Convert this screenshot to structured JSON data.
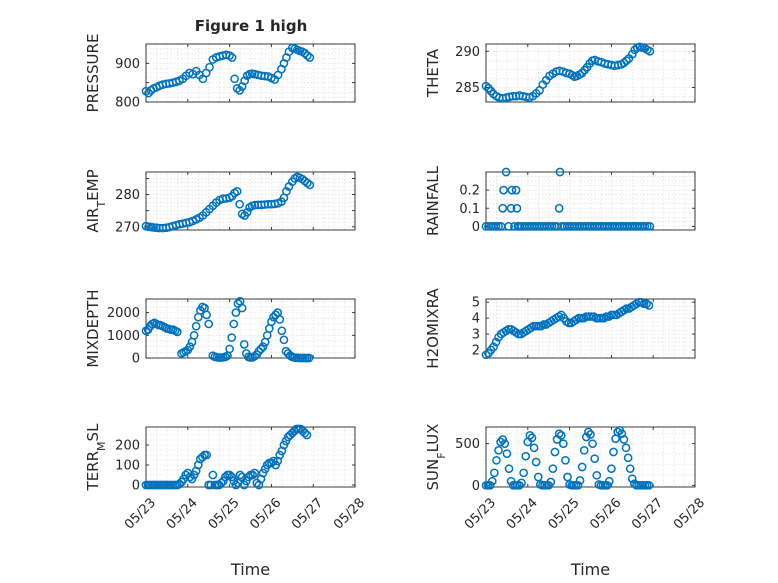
{
  "figure_title": "Figure 1 high",
  "colors": {
    "marker": "#0072BD",
    "axis": "#262626",
    "grid": "#d9d9d9"
  },
  "chart_data": [
    {
      "type": "scatter",
      "ylabel": "PRESSURE",
      "title": "Figure 1 high",
      "ylim": [
        800,
        950
      ],
      "yticks": [
        800,
        850,
        900
      ],
      "yticklabels": [
        "800",
        "",
        "900"
      ],
      "xlim": [
        0,
        5
      ],
      "xticks": [
        0,
        1,
        2,
        3,
        4,
        5
      ],
      "xticklabels": [],
      "grid": true,
      "x": [
        0.0,
        0.06,
        0.12,
        0.18,
        0.25,
        0.32,
        0.4,
        0.48,
        0.56,
        0.64,
        0.72,
        0.8,
        0.88,
        0.96,
        1.04,
        1.12,
        1.2,
        1.28,
        1.36,
        1.44,
        1.52,
        1.6,
        1.68,
        1.76,
        1.84,
        1.92,
        2.0,
        2.06,
        2.12,
        2.18,
        2.24,
        2.3,
        2.36,
        2.42,
        2.48,
        2.54,
        2.6,
        2.68,
        2.76,
        2.84,
        2.92,
        3.0,
        3.08,
        3.16,
        3.24,
        3.3,
        3.36,
        3.42,
        3.5,
        3.56,
        3.62,
        3.68,
        3.74,
        3.8,
        3.86,
        3.92
      ],
      "y": [
        828,
        823,
        830,
        835,
        838,
        842,
        845,
        847,
        848,
        850,
        852,
        855,
        860,
        868,
        875,
        872,
        880,
        870,
        860,
        875,
        890,
        910,
        915,
        918,
        920,
        922,
        920,
        915,
        860,
        835,
        830,
        840,
        855,
        868,
        872,
        873,
        872,
        870,
        868,
        867,
        866,
        862,
        858,
        870,
        885,
        900,
        915,
        930,
        940,
        938,
        935,
        932,
        930,
        926,
        920,
        915
      ]
    },
    {
      "type": "scatter",
      "ylabel": "THETA",
      "ylim": [
        283,
        291
      ],
      "yticks": [
        285,
        290
      ],
      "yticklabels": [
        "285",
        "290"
      ],
      "xlim": [
        0,
        5
      ],
      "xticks": [
        0,
        1,
        2,
        3,
        4,
        5
      ],
      "xticklabels": [],
      "grid": true,
      "x": [
        0.0,
        0.06,
        0.12,
        0.18,
        0.25,
        0.32,
        0.4,
        0.48,
        0.56,
        0.64,
        0.72,
        0.8,
        0.88,
        0.96,
        1.04,
        1.12,
        1.2,
        1.28,
        1.36,
        1.44,
        1.52,
        1.6,
        1.68,
        1.76,
        1.84,
        1.92,
        2.0,
        2.06,
        2.12,
        2.18,
        2.24,
        2.3,
        2.36,
        2.42,
        2.48,
        2.54,
        2.6,
        2.68,
        2.76,
        2.84,
        2.92,
        3.0,
        3.08,
        3.16,
        3.24,
        3.3,
        3.36,
        3.42,
        3.5,
        3.56,
        3.62,
        3.68,
        3.74,
        3.8,
        3.86,
        3.92
      ],
      "y": [
        285.2,
        284.9,
        284.5,
        284.1,
        283.8,
        283.6,
        283.5,
        283.6,
        283.7,
        283.8,
        283.8,
        283.9,
        283.8,
        283.7,
        283.6,
        283.8,
        284.2,
        284.6,
        285.4,
        286.0,
        286.6,
        286.9,
        287.2,
        287.3,
        287.2,
        287.0,
        286.9,
        286.7,
        286.5,
        286.6,
        286.8,
        287.0,
        287.4,
        287.8,
        288.3,
        288.7,
        288.8,
        288.6,
        288.5,
        288.3,
        288.2,
        288.1,
        288.0,
        288.1,
        288.2,
        288.4,
        288.7,
        289.0,
        289.6,
        290.2,
        290.5,
        290.6,
        290.5,
        290.4,
        290.2,
        290.0
      ]
    },
    {
      "type": "scatter",
      "ylabel": "AIR_TEMP",
      "ylim": [
        269,
        287
      ],
      "yticks": [
        270,
        275,
        280,
        285
      ],
      "yticklabels": [
        "270",
        "",
        "280",
        ""
      ],
      "xlim": [
        0,
        5
      ],
      "xticks": [
        0,
        1,
        2,
        3,
        4,
        5
      ],
      "xticklabels": [],
      "grid": true,
      "x": [
        0.0,
        0.06,
        0.12,
        0.18,
        0.25,
        0.32,
        0.4,
        0.48,
        0.56,
        0.64,
        0.72,
        0.8,
        0.88,
        0.96,
        1.04,
        1.12,
        1.2,
        1.28,
        1.36,
        1.44,
        1.52,
        1.6,
        1.68,
        1.76,
        1.84,
        1.92,
        2.0,
        2.06,
        2.12,
        2.18,
        2.24,
        2.3,
        2.36,
        2.42,
        2.48,
        2.54,
        2.6,
        2.68,
        2.76,
        2.84,
        2.92,
        3.0,
        3.08,
        3.16,
        3.24,
        3.3,
        3.36,
        3.42,
        3.5,
        3.56,
        3.62,
        3.68,
        3.74,
        3.8,
        3.86,
        3.92
      ],
      "y": [
        270.2,
        270.0,
        269.9,
        269.8,
        269.7,
        269.6,
        269.6,
        269.7,
        269.9,
        270.2,
        270.5,
        270.8,
        271.0,
        271.2,
        271.4,
        271.8,
        272.3,
        272.8,
        273.5,
        274.5,
        275.5,
        276.5,
        277.5,
        278.3,
        278.7,
        278.8,
        279.0,
        279.5,
        280.5,
        281.0,
        277.0,
        274.0,
        273.5,
        274.5,
        276.0,
        276.5,
        276.7,
        276.8,
        276.8,
        276.9,
        277.0,
        277.0,
        277.1,
        277.3,
        277.8,
        279.0,
        281.0,
        282.5,
        284.0,
        285.0,
        285.5,
        285.2,
        284.8,
        284.2,
        283.6,
        283.0
      ]
    },
    {
      "type": "scatter",
      "ylabel": "RAINFALL",
      "ylim": [
        -0.02,
        0.3
      ],
      "yticks": [
        0,
        0.1,
        0.2
      ],
      "yticklabels": [
        "0",
        "0.1",
        "0.2"
      ],
      "xlim": [
        0,
        5
      ],
      "xticks": [
        0,
        1,
        2,
        3,
        4,
        5
      ],
      "xticklabels": [],
      "grid": true,
      "x": [
        0.0,
        0.06,
        0.12,
        0.18,
        0.24,
        0.3,
        0.36,
        0.4,
        0.42,
        0.48,
        0.54,
        0.6,
        0.62,
        0.68,
        0.72,
        0.74,
        0.76,
        0.8,
        0.86,
        0.92,
        0.98,
        1.04,
        1.1,
        1.16,
        1.22,
        1.28,
        1.34,
        1.4,
        1.46,
        1.52,
        1.58,
        1.64,
        1.7,
        1.75,
        1.77,
        1.82,
        1.88,
        1.94,
        2.0,
        2.06,
        2.12,
        2.18,
        2.24,
        2.3,
        2.36,
        2.42,
        2.48,
        2.54,
        2.6,
        2.66,
        2.72,
        2.78,
        2.84,
        2.9,
        2.96,
        3.02,
        3.08,
        3.14,
        3.2,
        3.26,
        3.32,
        3.38,
        3.44,
        3.5,
        3.56,
        3.62,
        3.68,
        3.74,
        3.8,
        3.86,
        3.92
      ],
      "y": [
        0,
        0,
        0,
        0,
        0,
        0,
        0,
        0.1,
        0.2,
        0.3,
        0,
        0.1,
        0.2,
        0,
        0.2,
        0.1,
        0,
        0,
        0,
        0,
        0,
        0,
        0,
        0,
        0,
        0,
        0,
        0,
        0,
        0,
        0,
        0,
        0,
        0.1,
        0.3,
        0,
        0,
        0,
        0,
        0,
        0,
        0,
        0,
        0,
        0,
        0,
        0,
        0,
        0,
        0,
        0,
        0,
        0,
        0,
        0,
        0,
        0,
        0,
        0,
        0,
        0,
        0,
        0,
        0,
        0,
        0,
        0,
        0,
        0,
        0,
        0
      ]
    },
    {
      "type": "scatter",
      "ylabel": "MIXDEPTH",
      "ylim": [
        0,
        2600
      ],
      "yticks": [
        0,
        1000,
        2000
      ],
      "yticklabels": [
        "0",
        "1000",
        "2000"
      ],
      "xlim": [
        0,
        5
      ],
      "xticks": [
        0,
        1,
        2,
        3,
        4,
        5
      ],
      "xticklabels": [],
      "grid": true,
      "x": [
        0.0,
        0.05,
        0.1,
        0.15,
        0.2,
        0.25,
        0.3,
        0.35,
        0.4,
        0.45,
        0.5,
        0.55,
        0.6,
        0.65,
        0.7,
        0.75,
        0.85,
        0.9,
        0.95,
        1.0,
        1.05,
        1.1,
        1.15,
        1.2,
        1.25,
        1.3,
        1.35,
        1.4,
        1.45,
        1.5,
        1.6,
        1.65,
        1.7,
        1.75,
        1.8,
        1.85,
        1.9,
        1.95,
        2.0,
        2.05,
        2.1,
        2.15,
        2.2,
        2.25,
        2.3,
        2.35,
        2.4,
        2.45,
        2.5,
        2.55,
        2.6,
        2.65,
        2.7,
        2.75,
        2.8,
        2.85,
        2.9,
        2.95,
        3.0,
        3.05,
        3.1,
        3.15,
        3.2,
        3.25,
        3.3,
        3.35,
        3.4,
        3.45,
        3.5,
        3.55,
        3.6,
        3.65,
        3.7,
        3.75,
        3.8,
        3.85,
        3.9
      ],
      "y": [
        1200,
        1250,
        1400,
        1500,
        1550,
        1500,
        1450,
        1450,
        1400,
        1350,
        1300,
        1280,
        1250,
        1250,
        1200,
        1150,
        200,
        250,
        300,
        350,
        500,
        700,
        1000,
        1400,
        1800,
        2100,
        2250,
        2200,
        1900,
        1500,
        100,
        50,
        30,
        20,
        20,
        30,
        50,
        100,
        400,
        900,
        1500,
        2000,
        2400,
        2500,
        2200,
        600,
        200,
        50,
        20,
        30,
        80,
        150,
        300,
        400,
        500,
        700,
        1000,
        1300,
        1600,
        1800,
        1900,
        2000,
        1700,
        1200,
        800,
        300,
        200,
        100,
        50,
        20,
        10,
        5,
        0,
        0,
        0,
        0,
        0
      ]
    },
    {
      "type": "scatter",
      "ylabel": "H2OMIXRA",
      "ylim": [
        1.5,
        5.2
      ],
      "yticks": [
        2,
        3,
        4,
        5
      ],
      "yticklabels": [
        "2",
        "3",
        "4",
        "5"
      ],
      "xlim": [
        0,
        5
      ],
      "xticks": [
        0,
        1,
        2,
        3,
        4,
        5
      ],
      "xticklabels": [],
      "grid": true,
      "x": [
        0.0,
        0.06,
        0.12,
        0.18,
        0.24,
        0.3,
        0.36,
        0.42,
        0.48,
        0.54,
        0.6,
        0.66,
        0.72,
        0.78,
        0.84,
        0.9,
        0.96,
        1.02,
        1.08,
        1.14,
        1.2,
        1.26,
        1.32,
        1.38,
        1.44,
        1.5,
        1.56,
        1.62,
        1.68,
        1.74,
        1.8,
        1.86,
        1.92,
        1.98,
        2.04,
        2.1,
        2.16,
        2.22,
        2.28,
        2.34,
        2.4,
        2.46,
        2.52,
        2.58,
        2.64,
        2.7,
        2.76,
        2.82,
        2.88,
        2.94,
        3.0,
        3.06,
        3.12,
        3.18,
        3.24,
        3.3,
        3.36,
        3.42,
        3.48,
        3.54,
        3.6,
        3.66,
        3.72,
        3.78,
        3.84,
        3.9
      ],
      "y": [
        1.7,
        1.8,
        2.0,
        2.2,
        2.5,
        2.8,
        3.0,
        3.1,
        3.2,
        3.3,
        3.3,
        3.2,
        3.1,
        3.0,
        3.0,
        3.1,
        3.2,
        3.3,
        3.4,
        3.5,
        3.5,
        3.5,
        3.5,
        3.6,
        3.6,
        3.7,
        3.8,
        3.9,
        4.0,
        4.1,
        4.2,
        4.0,
        3.8,
        3.7,
        3.7,
        3.8,
        3.9,
        4.0,
        4.0,
        4.0,
        4.1,
        4.1,
        4.1,
        4.1,
        4.0,
        4.0,
        4.0,
        4.0,
        4.1,
        4.1,
        4.2,
        4.2,
        4.2,
        4.3,
        4.4,
        4.5,
        4.6,
        4.6,
        4.7,
        4.8,
        4.9,
        5.0,
        5.0,
        4.9,
        4.9,
        4.8
      ]
    },
    {
      "type": "scatter",
      "ylabel": "TERR_MSL",
      "xlabel": "Time",
      "ylim": [
        -10,
        290
      ],
      "yticks": [
        0,
        100,
        200
      ],
      "yticklabels": [
        "0",
        "100",
        "200"
      ],
      "xlim": [
        0,
        5
      ],
      "xticks": [
        0,
        1,
        2,
        3,
        4,
        5
      ],
      "xticklabels": [
        "05/23",
        "05/24",
        "05/25",
        "05/26",
        "05/27",
        "05/28"
      ],
      "grid": true,
      "x": [
        0.0,
        0.05,
        0.1,
        0.15,
        0.2,
        0.25,
        0.3,
        0.35,
        0.4,
        0.45,
        0.5,
        0.55,
        0.6,
        0.65,
        0.7,
        0.75,
        0.8,
        0.85,
        0.9,
        0.95,
        1.0,
        1.05,
        1.1,
        1.15,
        1.2,
        1.25,
        1.3,
        1.35,
        1.4,
        1.45,
        1.5,
        1.55,
        1.6,
        1.65,
        1.7,
        1.75,
        1.8,
        1.85,
        1.9,
        1.95,
        2.0,
        2.05,
        2.1,
        2.15,
        2.2,
        2.25,
        2.3,
        2.35,
        2.4,
        2.45,
        2.5,
        2.55,
        2.6,
        2.65,
        2.7,
        2.75,
        2.8,
        2.85,
        2.9,
        2.95,
        3.0,
        3.05,
        3.1,
        3.15,
        3.2,
        3.25,
        3.3,
        3.35,
        3.4,
        3.45,
        3.5,
        3.55,
        3.6,
        3.65,
        3.7,
        3.75,
        3.8,
        3.85
      ],
      "y": [
        0,
        0,
        0,
        0,
        0,
        0,
        0,
        0,
        0,
        0,
        0,
        0,
        0,
        0,
        0,
        0,
        5,
        15,
        30,
        50,
        60,
        40,
        30,
        50,
        70,
        100,
        130,
        140,
        150,
        150,
        0,
        0,
        50,
        0,
        0,
        0,
        10,
        20,
        40,
        50,
        50,
        40,
        20,
        0,
        10,
        50,
        40,
        0,
        20,
        40,
        50,
        50,
        60,
        10,
        0,
        30,
        60,
        80,
        100,
        110,
        110,
        120,
        100,
        120,
        150,
        170,
        200,
        220,
        240,
        250,
        260,
        270,
        280,
        280,
        280,
        270,
        260,
        250
      ]
    },
    {
      "type": "scatter",
      "ylabel": "SUN_FLUX",
      "xlabel": "Time",
      "ylim": [
        -20,
        700
      ],
      "yticks": [
        0,
        500
      ],
      "yticklabels": [
        "0",
        "500"
      ],
      "xlim": [
        0,
        5
      ],
      "xticks": [
        0,
        1,
        2,
        3,
        4,
        5
      ],
      "xticklabels": [
        "05/23",
        "05/24",
        "05/25",
        "05/26",
        "05/27",
        "05/28"
      ],
      "grid": true,
      "x": [
        0.0,
        0.05,
        0.1,
        0.15,
        0.2,
        0.25,
        0.3,
        0.35,
        0.4,
        0.45,
        0.5,
        0.55,
        0.6,
        0.65,
        0.7,
        0.75,
        0.8,
        0.85,
        0.9,
        0.95,
        1.0,
        1.05,
        1.1,
        1.15,
        1.2,
        1.25,
        1.3,
        1.35,
        1.4,
        1.45,
        1.5,
        1.55,
        1.6,
        1.65,
        1.7,
        1.75,
        1.8,
        1.85,
        1.9,
        1.95,
        2.0,
        2.05,
        2.1,
        2.15,
        2.2,
        2.25,
        2.3,
        2.35,
        2.4,
        2.45,
        2.5,
        2.55,
        2.6,
        2.65,
        2.7,
        2.75,
        2.8,
        2.85,
        2.9,
        2.95,
        3.0,
        3.05,
        3.1,
        3.15,
        3.2,
        3.25,
        3.3,
        3.35,
        3.4,
        3.45,
        3.5,
        3.55,
        3.6,
        3.65,
        3.7,
        3.75,
        3.8,
        3.85,
        3.9
      ],
      "y": [
        0,
        0,
        0,
        50,
        150,
        300,
        420,
        520,
        550,
        500,
        380,
        200,
        50,
        0,
        0,
        0,
        0,
        30,
        150,
        350,
        520,
        600,
        570,
        450,
        280,
        100,
        10,
        0,
        0,
        0,
        0,
        40,
        200,
        400,
        550,
        620,
        600,
        500,
        300,
        100,
        10,
        0,
        0,
        0,
        0,
        60,
        220,
        420,
        580,
        640,
        610,
        500,
        320,
        120,
        10,
        0,
        0,
        0,
        0,
        50,
        200,
        400,
        560,
        640,
        660,
        620,
        550,
        450,
        330,
        200,
        80,
        20,
        0,
        0,
        0,
        0,
        0,
        0,
        0
      ]
    }
  ]
}
